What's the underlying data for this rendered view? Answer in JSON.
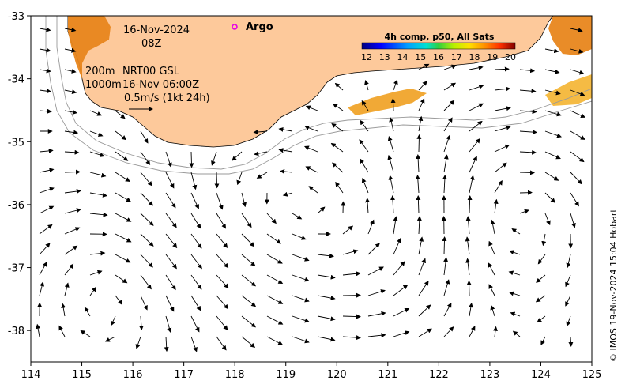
{
  "map": {
    "date": "16-Nov-2024",
    "hour": "08Z",
    "contour_label_1": "200m",
    "contour_label_2": "1000m",
    "product": "NRT00 GSL",
    "product_time": "16-Nov 06:00Z",
    "scale_label": "0.5m/s (1kt 24h)",
    "argo_label": "Argo",
    "credit": "© IMOS 19-Nov-2024 15:04 Hobart",
    "colors": {
      "land": "#fdc99b",
      "argo_marker": "#e600e6",
      "vector": "#000000",
      "contour": "#9a9a9a",
      "coast": "#000000"
    },
    "lon_range": [
      114,
      125
    ],
    "lat_range": [
      -38.5,
      -33
    ],
    "x_ticks": [
      "114",
      "115",
      "116",
      "117",
      "118",
      "119",
      "120",
      "121",
      "122",
      "123",
      "124",
      "125"
    ],
    "y_ticks": [
      "-33",
      "-34",
      "-35",
      "-36",
      "-37",
      "-38"
    ]
  },
  "colorbar": {
    "title": "4h comp, p50, All Sats",
    "unit_range": [
      12,
      20
    ],
    "ticks": [
      "12",
      "13",
      "14",
      "15",
      "16",
      "17",
      "18",
      "19",
      "20"
    ]
  }
}
